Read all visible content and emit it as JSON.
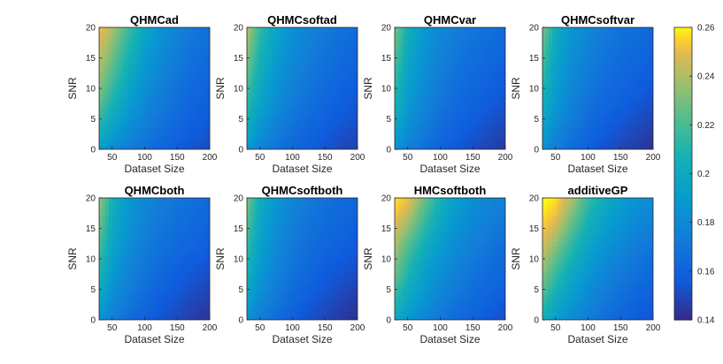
{
  "chart_data": {
    "type": "heatmap",
    "colormap": "parula",
    "colorbar": {
      "min": 0.14,
      "max": 0.26,
      "ticks": [
        0.14,
        0.16,
        0.18,
        0.2,
        0.22,
        0.24,
        0.26
      ],
      "tick_labels": [
        "0.14",
        "0.16",
        "0.18",
        "0.2",
        "0.22",
        "0.24",
        "0.26"
      ]
    },
    "x": [
      30,
      50,
      75,
      100,
      125,
      150,
      175,
      200
    ],
    "y": [
      0,
      2.5,
      5,
      7.5,
      10,
      12.5,
      15,
      17.5,
      20
    ],
    "xlim": [
      30,
      200
    ],
    "ylim": [
      0,
      20
    ],
    "xticks": [
      50,
      100,
      150,
      200
    ],
    "yticks": [
      0,
      5,
      10,
      15,
      20
    ],
    "xlabel": "Dataset Size",
    "ylabel": "SNR",
    "panels": [
      {
        "title": "QHMCad",
        "z": [
          [
            0.19,
            0.18,
            0.172,
            0.166,
            0.161,
            0.157,
            0.153,
            0.151
          ],
          [
            0.205,
            0.192,
            0.18,
            0.172,
            0.166,
            0.161,
            0.157,
            0.154
          ],
          [
            0.215,
            0.2,
            0.186,
            0.176,
            0.169,
            0.164,
            0.159,
            0.156
          ],
          [
            0.225,
            0.208,
            0.192,
            0.18,
            0.172,
            0.166,
            0.161,
            0.158
          ],
          [
            0.232,
            0.215,
            0.197,
            0.183,
            0.175,
            0.168,
            0.163,
            0.16
          ],
          [
            0.238,
            0.222,
            0.202,
            0.187,
            0.177,
            0.171,
            0.165,
            0.162
          ],
          [
            0.243,
            0.228,
            0.207,
            0.191,
            0.18,
            0.173,
            0.167,
            0.164
          ],
          [
            0.248,
            0.234,
            0.212,
            0.195,
            0.183,
            0.175,
            0.169,
            0.166
          ],
          [
            0.253,
            0.24,
            0.218,
            0.199,
            0.186,
            0.177,
            0.171,
            0.168
          ]
        ]
      },
      {
        "title": "QHMCsoftad",
        "z": [
          [
            0.188,
            0.176,
            0.168,
            0.162,
            0.158,
            0.154,
            0.15,
            0.147
          ],
          [
            0.198,
            0.184,
            0.173,
            0.166,
            0.161,
            0.157,
            0.153,
            0.15
          ],
          [
            0.206,
            0.19,
            0.178,
            0.17,
            0.164,
            0.16,
            0.156,
            0.153
          ],
          [
            0.213,
            0.195,
            0.182,
            0.173,
            0.167,
            0.162,
            0.158,
            0.155
          ],
          [
            0.219,
            0.199,
            0.185,
            0.175,
            0.169,
            0.164,
            0.16,
            0.157
          ],
          [
            0.225,
            0.203,
            0.188,
            0.178,
            0.171,
            0.166,
            0.162,
            0.159
          ],
          [
            0.231,
            0.207,
            0.191,
            0.18,
            0.173,
            0.168,
            0.164,
            0.161
          ],
          [
            0.237,
            0.211,
            0.194,
            0.182,
            0.175,
            0.17,
            0.166,
            0.163
          ],
          [
            0.242,
            0.215,
            0.197,
            0.184,
            0.177,
            0.172,
            0.168,
            0.165
          ]
        ]
      },
      {
        "title": "QHMCvar",
        "z": [
          [
            0.186,
            0.175,
            0.166,
            0.16,
            0.155,
            0.151,
            0.148,
            0.145
          ],
          [
            0.194,
            0.181,
            0.171,
            0.164,
            0.159,
            0.155,
            0.151,
            0.148
          ],
          [
            0.201,
            0.186,
            0.175,
            0.167,
            0.162,
            0.158,
            0.154,
            0.151
          ],
          [
            0.207,
            0.19,
            0.178,
            0.17,
            0.164,
            0.16,
            0.157,
            0.154
          ],
          [
            0.212,
            0.193,
            0.181,
            0.172,
            0.166,
            0.162,
            0.159,
            0.156
          ],
          [
            0.217,
            0.196,
            0.183,
            0.174,
            0.168,
            0.164,
            0.161,
            0.158
          ],
          [
            0.222,
            0.199,
            0.185,
            0.176,
            0.17,
            0.166,
            0.163,
            0.16
          ],
          [
            0.227,
            0.202,
            0.187,
            0.178,
            0.172,
            0.168,
            0.165,
            0.162
          ],
          [
            0.232,
            0.205,
            0.189,
            0.18,
            0.174,
            0.17,
            0.167,
            0.164
          ]
        ]
      },
      {
        "title": "QHMCsoftvar",
        "z": [
          [
            0.185,
            0.173,
            0.164,
            0.158,
            0.153,
            0.149,
            0.146,
            0.143
          ],
          [
            0.192,
            0.179,
            0.169,
            0.162,
            0.157,
            0.153,
            0.149,
            0.146
          ],
          [
            0.199,
            0.184,
            0.173,
            0.166,
            0.16,
            0.156,
            0.152,
            0.149
          ],
          [
            0.205,
            0.188,
            0.176,
            0.168,
            0.163,
            0.159,
            0.155,
            0.152
          ],
          [
            0.21,
            0.191,
            0.179,
            0.171,
            0.165,
            0.161,
            0.158,
            0.155
          ],
          [
            0.215,
            0.194,
            0.181,
            0.173,
            0.167,
            0.163,
            0.16,
            0.157
          ],
          [
            0.22,
            0.197,
            0.183,
            0.175,
            0.169,
            0.165,
            0.162,
            0.159
          ],
          [
            0.226,
            0.2,
            0.185,
            0.177,
            0.171,
            0.167,
            0.164,
            0.161
          ],
          [
            0.232,
            0.203,
            0.187,
            0.179,
            0.173,
            0.169,
            0.166,
            0.163
          ]
        ]
      },
      {
        "title": "QHMCboth",
        "z": [
          [
            0.186,
            0.174,
            0.165,
            0.159,
            0.154,
            0.15,
            0.146,
            0.143
          ],
          [
            0.194,
            0.18,
            0.17,
            0.163,
            0.157,
            0.153,
            0.149,
            0.146
          ],
          [
            0.201,
            0.185,
            0.174,
            0.166,
            0.16,
            0.156,
            0.152,
            0.149
          ],
          [
            0.208,
            0.19,
            0.177,
            0.169,
            0.163,
            0.158,
            0.155,
            0.152
          ],
          [
            0.215,
            0.194,
            0.18,
            0.171,
            0.165,
            0.161,
            0.158,
            0.155
          ],
          [
            0.221,
            0.197,
            0.183,
            0.174,
            0.168,
            0.164,
            0.161,
            0.158
          ],
          [
            0.227,
            0.2,
            0.185,
            0.176,
            0.17,
            0.166,
            0.163,
            0.16
          ],
          [
            0.233,
            0.203,
            0.187,
            0.178,
            0.172,
            0.168,
            0.165,
            0.162
          ],
          [
            0.238,
            0.206,
            0.189,
            0.18,
            0.174,
            0.17,
            0.167,
            0.164
          ]
        ]
      },
      {
        "title": "QHMCsoftboth",
        "z": [
          [
            0.185,
            0.173,
            0.164,
            0.158,
            0.153,
            0.149,
            0.145,
            0.142
          ],
          [
            0.192,
            0.179,
            0.169,
            0.162,
            0.156,
            0.152,
            0.148,
            0.145
          ],
          [
            0.199,
            0.184,
            0.173,
            0.165,
            0.159,
            0.155,
            0.151,
            0.148
          ],
          [
            0.205,
            0.188,
            0.176,
            0.168,
            0.162,
            0.157,
            0.154,
            0.151
          ],
          [
            0.211,
            0.191,
            0.179,
            0.17,
            0.164,
            0.16,
            0.157,
            0.154
          ],
          [
            0.216,
            0.194,
            0.181,
            0.172,
            0.166,
            0.162,
            0.159,
            0.156
          ],
          [
            0.221,
            0.197,
            0.183,
            0.174,
            0.168,
            0.164,
            0.161,
            0.158
          ],
          [
            0.226,
            0.2,
            0.185,
            0.176,
            0.17,
            0.166,
            0.163,
            0.16
          ],
          [
            0.231,
            0.203,
            0.187,
            0.178,
            0.172,
            0.168,
            0.165,
            0.162
          ]
        ]
      },
      {
        "title": "HMCsoftboth",
        "z": [
          [
            0.2,
            0.188,
            0.178,
            0.17,
            0.164,
            0.159,
            0.155,
            0.152
          ],
          [
            0.21,
            0.196,
            0.184,
            0.175,
            0.168,
            0.163,
            0.159,
            0.155
          ],
          [
            0.219,
            0.203,
            0.189,
            0.179,
            0.172,
            0.166,
            0.162,
            0.158
          ],
          [
            0.227,
            0.21,
            0.194,
            0.183,
            0.175,
            0.169,
            0.164,
            0.161
          ],
          [
            0.234,
            0.216,
            0.199,
            0.187,
            0.178,
            0.172,
            0.167,
            0.163
          ],
          [
            0.241,
            0.224,
            0.205,
            0.191,
            0.181,
            0.175,
            0.17,
            0.166
          ],
          [
            0.248,
            0.234,
            0.213,
            0.196,
            0.185,
            0.178,
            0.173,
            0.169
          ],
          [
            0.254,
            0.244,
            0.221,
            0.201,
            0.189,
            0.181,
            0.176,
            0.172
          ],
          [
            0.258,
            0.252,
            0.229,
            0.206,
            0.193,
            0.184,
            0.179,
            0.175
          ]
        ]
      },
      {
        "title": "additiveGP",
        "z": [
          [
            0.204,
            0.192,
            0.181,
            0.173,
            0.166,
            0.161,
            0.157,
            0.154
          ],
          [
            0.214,
            0.2,
            0.187,
            0.178,
            0.17,
            0.165,
            0.16,
            0.157
          ],
          [
            0.224,
            0.208,
            0.193,
            0.182,
            0.174,
            0.168,
            0.163,
            0.16
          ],
          [
            0.233,
            0.216,
            0.199,
            0.187,
            0.178,
            0.172,
            0.167,
            0.163
          ],
          [
            0.241,
            0.225,
            0.206,
            0.192,
            0.182,
            0.176,
            0.17,
            0.166
          ],
          [
            0.248,
            0.235,
            0.214,
            0.198,
            0.187,
            0.18,
            0.174,
            0.17
          ],
          [
            0.254,
            0.245,
            0.223,
            0.204,
            0.192,
            0.184,
            0.178,
            0.174
          ],
          [
            0.258,
            0.253,
            0.232,
            0.21,
            0.197,
            0.188,
            0.182,
            0.178
          ],
          [
            0.261,
            0.258,
            0.24,
            0.216,
            0.202,
            0.192,
            0.186,
            0.182
          ]
        ]
      }
    ]
  }
}
